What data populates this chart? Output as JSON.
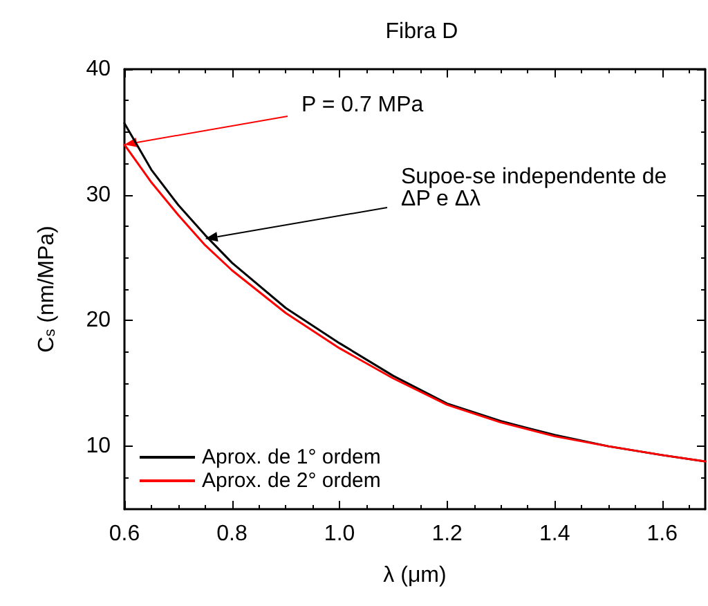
{
  "chart_data": {
    "type": "line",
    "title": "Fibra D",
    "xlabel": "λ (μm)",
    "ylabel": "C$_{s}$ (nm/MPa)",
    "x": [
      0.6,
      0.65,
      0.7,
      0.75,
      0.8,
      0.9,
      1.0,
      1.1,
      1.2,
      1.3,
      1.4,
      1.5,
      1.6,
      1.68
    ],
    "series": [
      {
        "name": "Aprox. de 1° ordem",
        "color": "#000000",
        "values": [
          35.7,
          32.0,
          29.2,
          26.8,
          24.6,
          21.0,
          18.2,
          15.6,
          13.4,
          12.0,
          10.9,
          10.0,
          9.3,
          8.8
        ]
      },
      {
        "name": "Aprox. de 2° ordem",
        "color": "#ff0000",
        "values": [
          34.0,
          31.0,
          28.4,
          26.0,
          24.0,
          20.6,
          17.8,
          15.4,
          13.3,
          11.9,
          10.8,
          10.0,
          9.3,
          8.8
        ]
      }
    ],
    "annotations": [
      {
        "text": "P = 0.7 MPa",
        "x": 0.6,
        "y": 34.0
      },
      {
        "text": "Supoe-se independente de\nΔP e Δλ",
        "x": 0.75,
        "y": 26.5
      }
    ],
    "xlim": [
      0.6,
      1.68
    ],
    "xticks": [
      0.6,
      0.8,
      {
        "value": 1.0,
        "label": "1.0"
      },
      1.2,
      1.4,
      1.6
    ],
    "ylim": [
      5,
      40
    ],
    "yticks": [
      10,
      20,
      30,
      40
    ],
    "grid": false,
    "legend": "bottom left",
    "marker": "none",
    "line_style": "solid"
  }
}
